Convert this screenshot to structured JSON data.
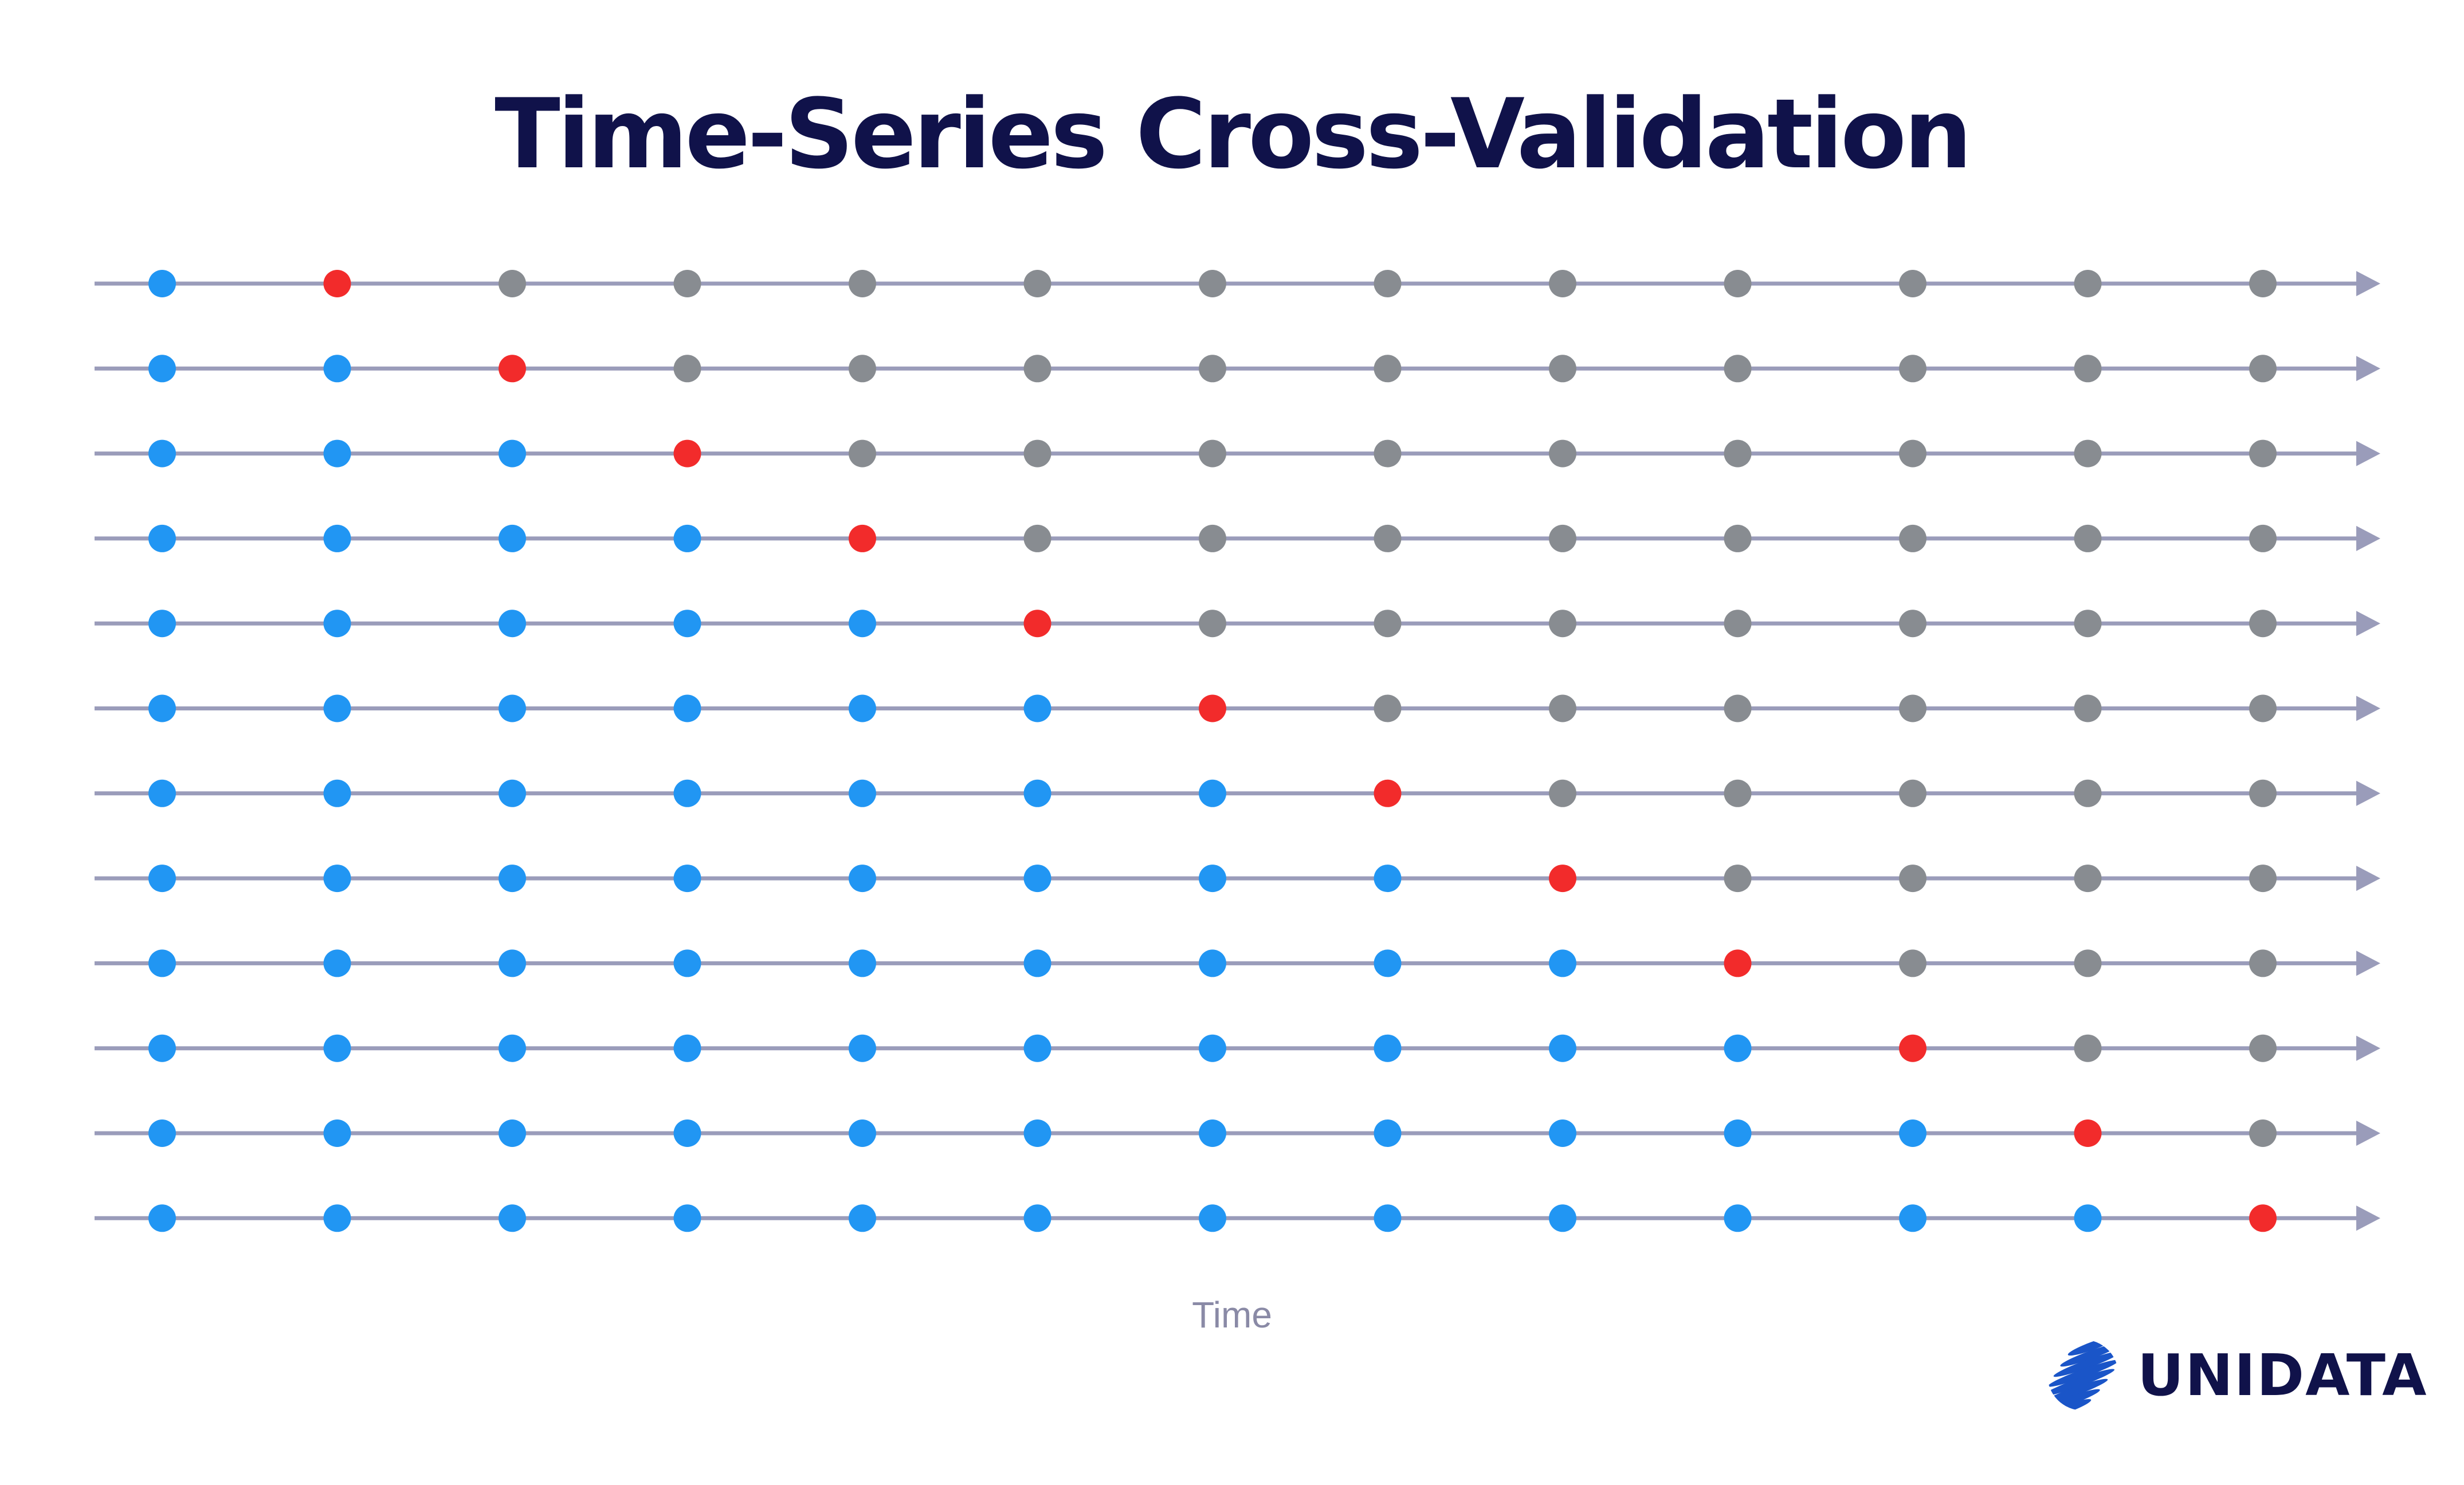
{
  "title": "Time-Series Cross-Validation",
  "axis_label": "Time",
  "logo": {
    "text": "UNIDATA",
    "icon": "striped-globe-icon"
  },
  "legend_colors": {
    "train": "#2196f3",
    "test": "#f22b2b",
    "unused": "#888c91",
    "axis_line": "#9a9cba"
  },
  "folds": [
    {
      "train_points": 1,
      "test_point": 2
    },
    {
      "train_points": 2,
      "test_point": 3
    },
    {
      "train_points": 3,
      "test_point": 4
    },
    {
      "train_points": 4,
      "test_point": 5
    },
    {
      "train_points": 5,
      "test_point": 6
    },
    {
      "train_points": 6,
      "test_point": 7
    },
    {
      "train_points": 7,
      "test_point": 8
    },
    {
      "train_points": 8,
      "test_point": 9
    },
    {
      "train_points": 9,
      "test_point": 10
    },
    {
      "train_points": 10,
      "test_point": 11
    },
    {
      "train_points": 11,
      "test_point": 12
    },
    {
      "train_points": 12,
      "test_point": 13
    }
  ],
  "points_per_row": 13
}
